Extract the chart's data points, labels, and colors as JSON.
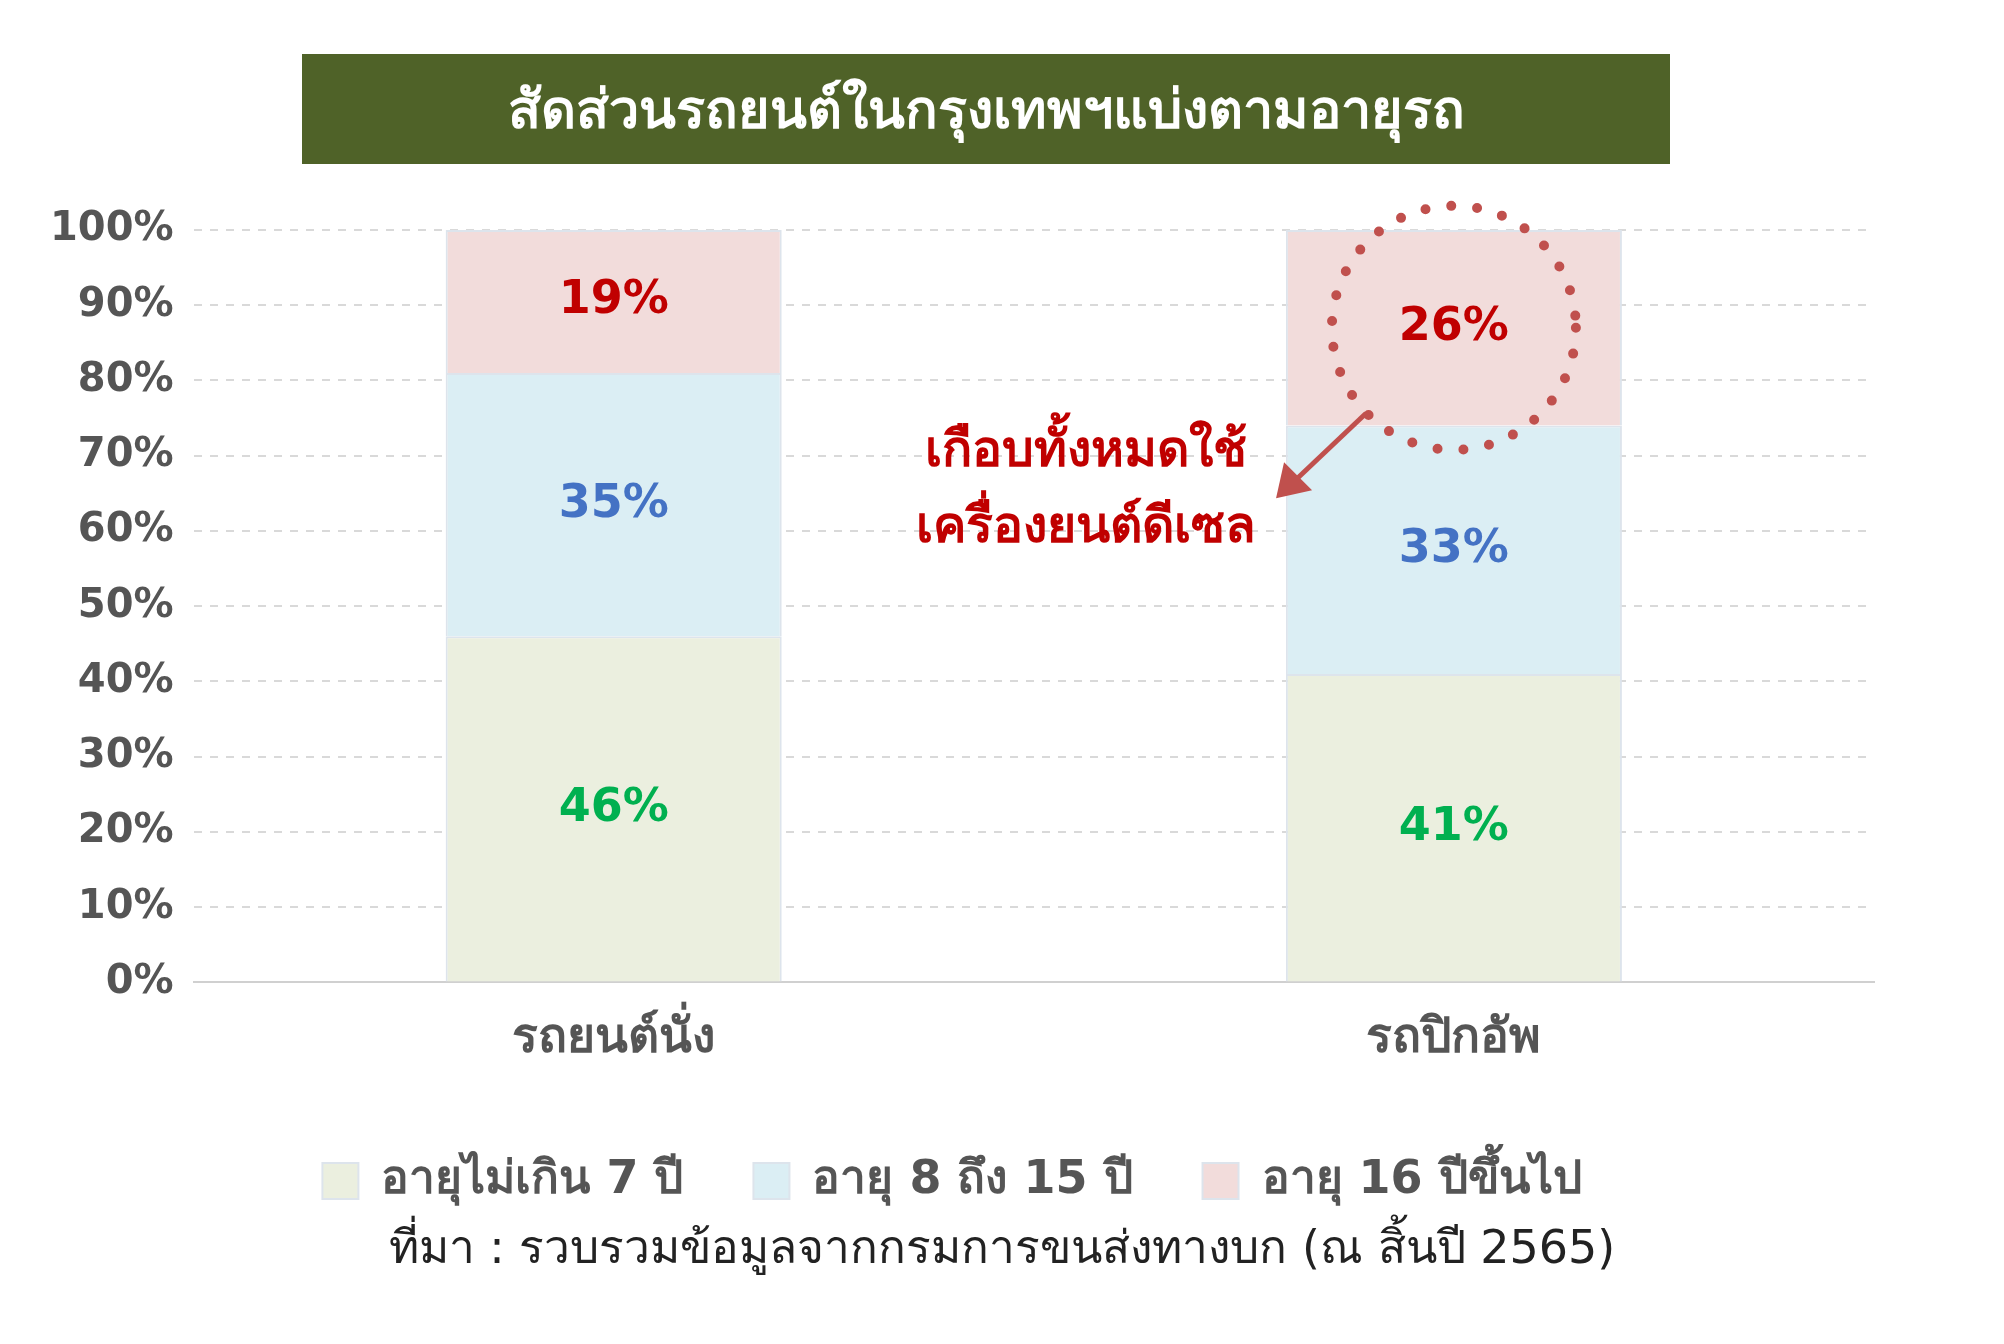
{
  "chart_data": {
    "type": "bar",
    "stacked": true,
    "title": "สัดส่วนรถยนต์ในกรุงเทพฯแบ่งตามอายุรถ",
    "categories": [
      "รถยนต์นั่ง",
      "รถปิกอัพ"
    ],
    "series": [
      {
        "name": "อายุไม่เกิน 7 ปี",
        "color": "#ebefdf",
        "values": [
          46,
          41
        ],
        "value_labels": [
          "46%",
          "41%"
        ]
      },
      {
        "name": "อายุ 8 ถึง 15 ปี",
        "color": "#dbeef4",
        "values": [
          35,
          33
        ],
        "value_labels": [
          "35%",
          "33%"
        ]
      },
      {
        "name": "อายุ 16 ปีขึ้นไป",
        "color": "#f2dcdb",
        "values": [
          19,
          26
        ],
        "value_labels": [
          "19%",
          "26%"
        ]
      }
    ],
    "ylim": [
      0,
      100
    ],
    "yticks": [
      {
        "value": 0,
        "label": "0%"
      },
      {
        "value": 10,
        "label": "10%"
      },
      {
        "value": 20,
        "label": "20%"
      },
      {
        "value": 30,
        "label": "30%"
      },
      {
        "value": 40,
        "label": "40%"
      },
      {
        "value": 50,
        "label": "50%"
      },
      {
        "value": 60,
        "label": "60%"
      },
      {
        "value": 70,
        "label": "70%"
      },
      {
        "value": 80,
        "label": "80%"
      },
      {
        "value": 90,
        "label": "90%"
      },
      {
        "value": 100,
        "label": "100%"
      }
    ],
    "grid": "y",
    "legend": "bottom",
    "annotations": [
      "เกือบทั้งหมดใช้\nเครื่องยนต์ดีเซล",
      "ที่มา : รวบรวมข้อมูลจากกรมการขนส่งทางบก (ณ สิ้นปี 2565)"
    ]
  }
}
